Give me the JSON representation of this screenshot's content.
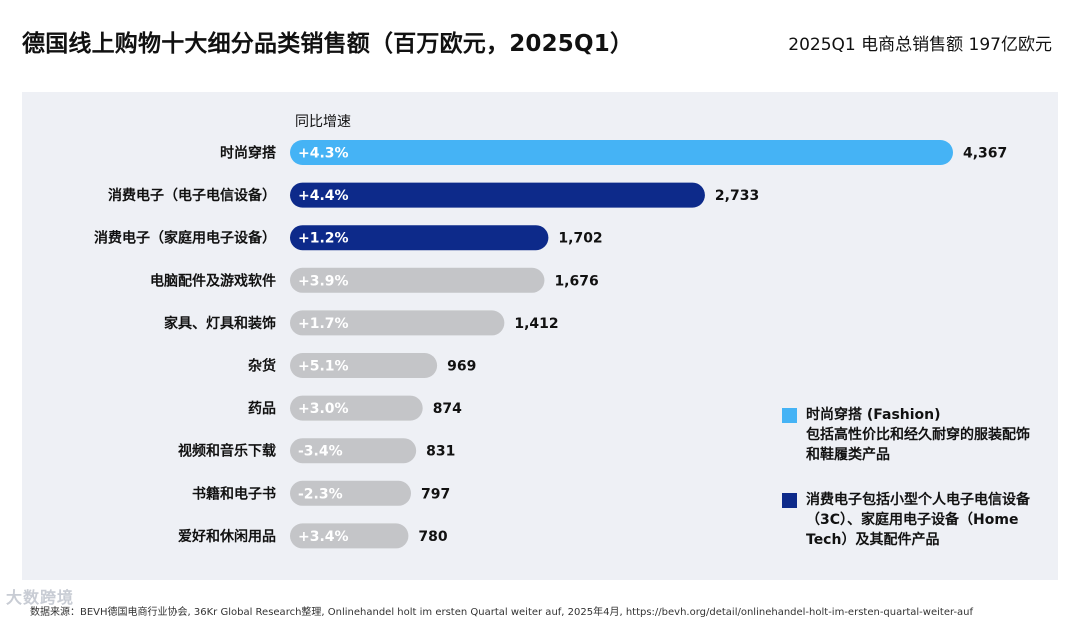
{
  "header": {
    "title": "德国线上购物十大细分品类销售额（百万欧元，2025Q1）",
    "subtitle": "2025Q1 电商总销售额 197亿欧元"
  },
  "chart_data": {
    "type": "bar",
    "orientation": "horizontal",
    "title": "德国线上购物十大细分品类销售额（百万欧元，2025Q1）",
    "growth_header": "同比增速",
    "categories": [
      "时尚穿搭",
      "消费电子（电子电信设备）",
      "消费电子（家庭用电子设备）",
      "电脑配件及游戏软件",
      "家具、灯具和装饰",
      "杂货",
      "药品",
      "视频和音乐下载",
      "书籍和电子书",
      "爱好和休闲用品"
    ],
    "values": [
      4367,
      2733,
      1702,
      1676,
      1412,
      969,
      874,
      831,
      797,
      780
    ],
    "value_labels": [
      "4,367",
      "2,733",
      "1,702",
      "1,676",
      "1,412",
      "969",
      "874",
      "831",
      "797",
      "780"
    ],
    "growth_labels": [
      "+4.3%",
      "+4.4%",
      "+1.2%",
      "+3.9%",
      "+1.7%",
      "+5.1%",
      "+3.0%",
      "-3.4%",
      "-2.3%",
      "+3.4%"
    ],
    "groups": [
      "fashion",
      "electronics",
      "electronics",
      "other",
      "other",
      "other",
      "other",
      "other",
      "other",
      "other"
    ],
    "colors": {
      "fashion": "#45b3f5",
      "electronics": "#0d2a8a",
      "other": "#c4c5c8"
    },
    "unit": "百万欧元",
    "xlim": [
      0,
      4367
    ]
  },
  "legend": {
    "fashion": {
      "color": "#45b3f5",
      "text": "时尚穿搭 (Fashion)\n包括高性价比和经久耐穿的服装配饰和鞋履类产品"
    },
    "electronics": {
      "color": "#0d2a8a",
      "text": "消费电子包括小型个人电子电信设备（3C）、家庭用电子设备（Home Tech）及其配件产品"
    }
  },
  "footer": {
    "source": "数据来源：BEVH德国电商行业协会, 36Kr Global Research整理, Onlinehandel holt im ersten Quartal weiter auf, 2025年4月, https://bevh.org/detail/onlinehandel-holt-im-ersten-quartal-weiter-auf",
    "watermark": "大数跨境"
  }
}
